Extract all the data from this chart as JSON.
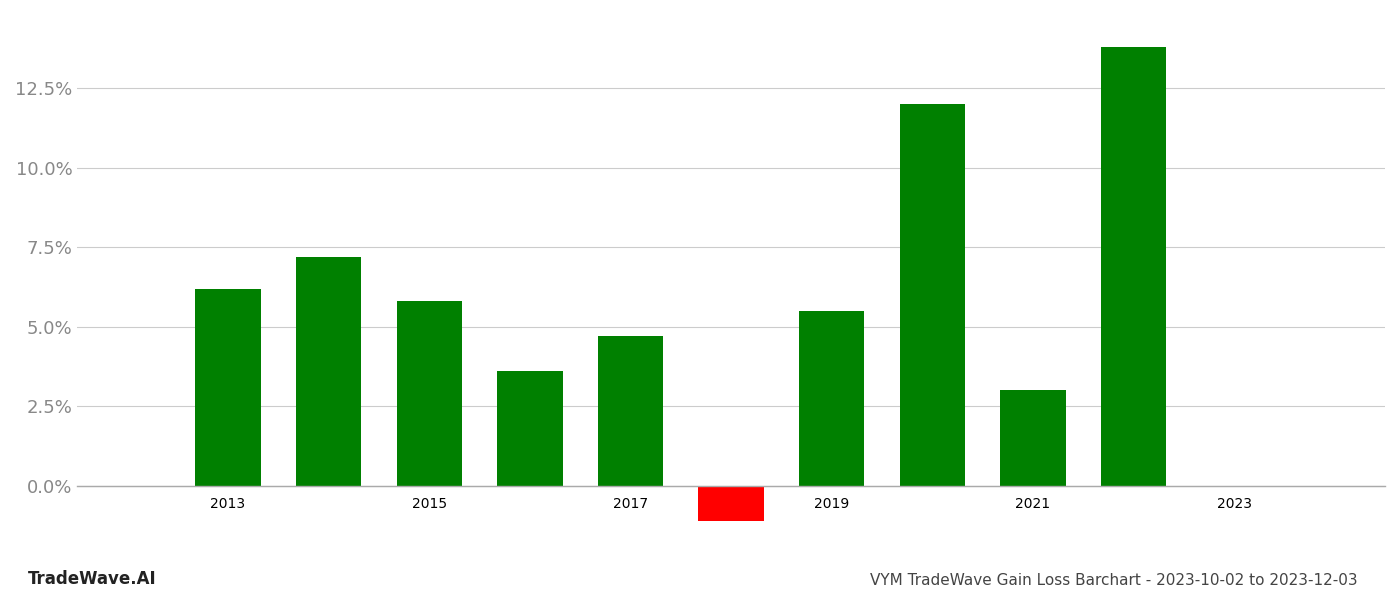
{
  "years": [
    2013,
    2014,
    2015,
    2016,
    2017,
    2018,
    2019,
    2020,
    2021,
    2022
  ],
  "values": [
    0.062,
    0.072,
    0.058,
    0.036,
    0.047,
    -0.011,
    0.055,
    0.12,
    0.03,
    0.138
  ],
  "colors": [
    "#008000",
    "#008000",
    "#008000",
    "#008000",
    "#008000",
    "#ff0000",
    "#008000",
    "#008000",
    "#008000",
    "#008000"
  ],
  "title": "VYM TradeWave Gain Loss Barchart - 2023-10-02 to 2023-12-03",
  "watermark": "TradeWave.AI",
  "bar_width": 0.65,
  "ylim": [
    -0.018,
    0.148
  ],
  "ytick_values": [
    0.0,
    0.025,
    0.05,
    0.075,
    0.1,
    0.125
  ],
  "xlim": [
    2011.5,
    2024.5
  ],
  "xtick_positions": [
    2013,
    2015,
    2017,
    2019,
    2021,
    2023
  ],
  "background_color": "#ffffff",
  "grid_color": "#cccccc",
  "axis_label_color": "#888888",
  "title_color": "#444444",
  "watermark_color": "#222222",
  "spine_color": "#aaaaaa",
  "title_fontsize": 11,
  "watermark_fontsize": 12,
  "tick_fontsize": 13
}
